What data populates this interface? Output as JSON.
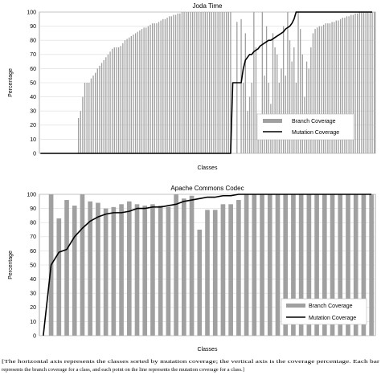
{
  "chart_data": [
    {
      "type": "bar",
      "title": "Joda Time",
      "xlabel": "Classes",
      "ylabel": "Percentage",
      "ylim": [
        0,
        100
      ],
      "yticks": [
        0,
        10,
        20,
        30,
        40,
        50,
        60,
        70,
        80,
        90,
        100
      ],
      "grid": true,
      "legend_position": "bottom-right",
      "series": [
        {
          "name": "Branch Coverage",
          "kind": "bar",
          "color": "#a0a0a0",
          "values": [
            0,
            0,
            0,
            0,
            0,
            0,
            0,
            0,
            0,
            0,
            0,
            0,
            0,
            0,
            0,
            0,
            0,
            0,
            25,
            30,
            40,
            50,
            50,
            50,
            53,
            55,
            57,
            60,
            62,
            64,
            66,
            68,
            70,
            72,
            74,
            75,
            75,
            75,
            76,
            78,
            80,
            81,
            82,
            83,
            84,
            85,
            86,
            87,
            88,
            89,
            89,
            90,
            91,
            92,
            92,
            92,
            93,
            94,
            95,
            95,
            96,
            97,
            97,
            98,
            98,
            99,
            99,
            100,
            100,
            100,
            100,
            100,
            100,
            100,
            100,
            100,
            100,
            100,
            100,
            100,
            100,
            100,
            100,
            100,
            100,
            100,
            100,
            100,
            100,
            100,
            100,
            0,
            0,
            93,
            0,
            95,
            50,
            85,
            30,
            40,
            50,
            100,
            75,
            25,
            15,
            100,
            55,
            90,
            50,
            35,
            85,
            75,
            70,
            50,
            60,
            90,
            55,
            100,
            80,
            65,
            75,
            50,
            100,
            88,
            70,
            40,
            65,
            60,
            75,
            85,
            88,
            89,
            90,
            90,
            91,
            92,
            92,
            92,
            93,
            93,
            94,
            94,
            95,
            96,
            96,
            97,
            97,
            98,
            98,
            99,
            99,
            100,
            100,
            100,
            100,
            100,
            100,
            100,
            100
          ]
        },
        {
          "name": "Mutation Coverage",
          "kind": "line",
          "color": "#000000",
          "values": [
            0,
            0,
            0,
            0,
            0,
            0,
            0,
            0,
            0,
            0,
            0,
            0,
            0,
            0,
            0,
            0,
            0,
            0,
            0,
            0,
            0,
            0,
            0,
            0,
            0,
            0,
            0,
            0,
            0,
            0,
            0,
            0,
            0,
            0,
            0,
            0,
            0,
            0,
            0,
            0,
            0,
            0,
            0,
            0,
            0,
            0,
            0,
            0,
            0,
            0,
            0,
            0,
            0,
            0,
            0,
            0,
            0,
            0,
            0,
            0,
            0,
            0,
            0,
            0,
            0,
            0,
            0,
            0,
            0,
            0,
            0,
            0,
            0,
            0,
            0,
            0,
            0,
            0,
            0,
            0,
            0,
            0,
            0,
            0,
            0,
            0,
            0,
            0,
            0,
            0,
            0,
            50,
            50,
            50,
            50,
            50,
            60,
            66,
            68,
            70,
            70,
            72,
            73,
            74,
            76,
            77,
            78,
            79,
            80,
            80,
            81,
            82,
            83,
            84,
            85,
            86,
            88,
            89,
            90,
            92,
            95,
            100,
            100,
            100,
            100,
            100,
            100,
            100,
            100,
            100,
            100,
            100,
            100,
            100,
            100,
            100,
            100,
            100,
            100,
            100,
            100,
            100,
            100,
            100,
            100,
            100,
            100,
            100,
            100,
            100,
            100,
            100,
            100,
            100,
            100,
            100,
            100,
            100
          ]
        }
      ]
    },
    {
      "type": "bar",
      "title": "Apache Commons Codec",
      "xlabel": "Classes",
      "ylabel": "Percentage",
      "ylim": [
        0,
        100
      ],
      "yticks": [
        0,
        10,
        20,
        30,
        40,
        50,
        60,
        70,
        80,
        90,
        100
      ],
      "grid": true,
      "legend_position": "bottom-right",
      "series": [
        {
          "name": "Branch Coverage",
          "kind": "bar",
          "color": "#a0a0a0",
          "values": [
            0,
            100,
            83,
            96,
            92,
            100,
            95,
            94,
            90,
            91,
            93,
            95,
            93,
            92,
            93,
            92,
            91,
            100,
            97,
            99,
            75,
            89,
            89,
            93,
            93,
            96,
            100,
            100,
            100,
            100,
            100,
            100,
            100,
            100,
            100,
            100,
            100,
            100,
            100,
            100,
            100,
            100,
            100
          ]
        },
        {
          "name": "Mutation Coverage",
          "kind": "line",
          "color": "#000000",
          "values": [
            0,
            50,
            59,
            61,
            70,
            76,
            81,
            84,
            86,
            87,
            87,
            88,
            90,
            90,
            91,
            91,
            92,
            93,
            95,
            96,
            97,
            98,
            98,
            99,
            99,
            100,
            100,
            100,
            100,
            100,
            100,
            100,
            100,
            100,
            100,
            100,
            100,
            100,
            100,
            100,
            100,
            100,
            100
          ]
        }
      ]
    }
  ],
  "caption": "[The horizontal axis represents the classes sorted by mutation coverage; the vertical axis is the coverage percentage. Each bar represents the branch coverage for a class, and each point on the line represents the mutation coverage for a class.]"
}
